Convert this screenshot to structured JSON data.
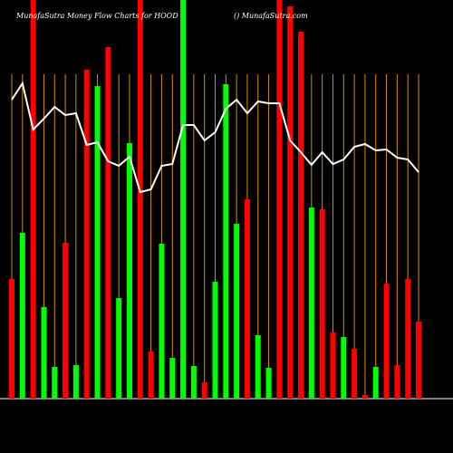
{
  "chart_data": {
    "type": "bar",
    "title": "MunafaSutra  Money Flow  Charts for HOOD",
    "subtitle": "() MunafaSutra.com",
    "ylim": [
      0,
      440
    ],
    "categories": [
      null,
      null,
      null,
      null,
      null,
      null,
      null,
      null,
      null,
      null,
      null,
      null,
      null,
      null,
      null,
      null,
      null,
      null,
      null,
      null,
      null,
      null,
      null,
      null,
      null,
      null,
      null,
      null,
      null,
      null,
      null,
      null,
      null,
      null,
      null,
      null,
      null,
      null,
      null
    ],
    "bars": {
      "values": [
        132,
        183,
        440,
        101,
        35,
        172,
        37,
        363,
        345,
        388,
        111,
        282,
        440,
        52,
        171,
        45,
        440,
        36,
        18,
        129,
        347,
        193,
        220,
        70,
        34,
        440,
        433,
        405,
        211,
        209,
        73,
        68,
        55,
        4,
        35,
        127,
        37,
        132,
        85
      ],
      "colors": [
        "#ff0000",
        "#00ff00",
        "#ff0000",
        "#00ff00",
        "#00ff00",
        "#ff0000",
        "#00ff00",
        "#ff0000",
        "#00ff00",
        "#ff0000",
        "#00ff00",
        "#00ff00",
        "#ff0000",
        "#ff0000",
        "#00ff00",
        "#00ff00",
        "#00ff00",
        "#00ff00",
        "#ff0000",
        "#00ff00",
        "#00ff00",
        "#00ff00",
        "#ff0000",
        "#00ff00",
        "#00ff00",
        "#ff0000",
        "#ff0000",
        "#ff0000",
        "#00ff00",
        "#ff0000",
        "#ff0000",
        "#00ff00",
        "#ff0000",
        "#ff0000",
        "#00ff00",
        "#ff0000",
        "#ff0000",
        "#ff0000",
        "#ff0000"
      ]
    },
    "line": {
      "color": "#ffffff",
      "values": [
        330,
        348,
        297,
        309,
        322,
        313,
        315,
        280,
        283,
        262,
        257,
        267,
        228,
        231,
        257,
        259,
        302,
        302,
        285,
        294,
        320,
        330,
        315,
        328,
        326,
        326,
        285,
        272,
        258,
        272,
        259,
        264,
        278,
        281,
        274,
        275,
        266,
        264,
        250
      ]
    }
  }
}
